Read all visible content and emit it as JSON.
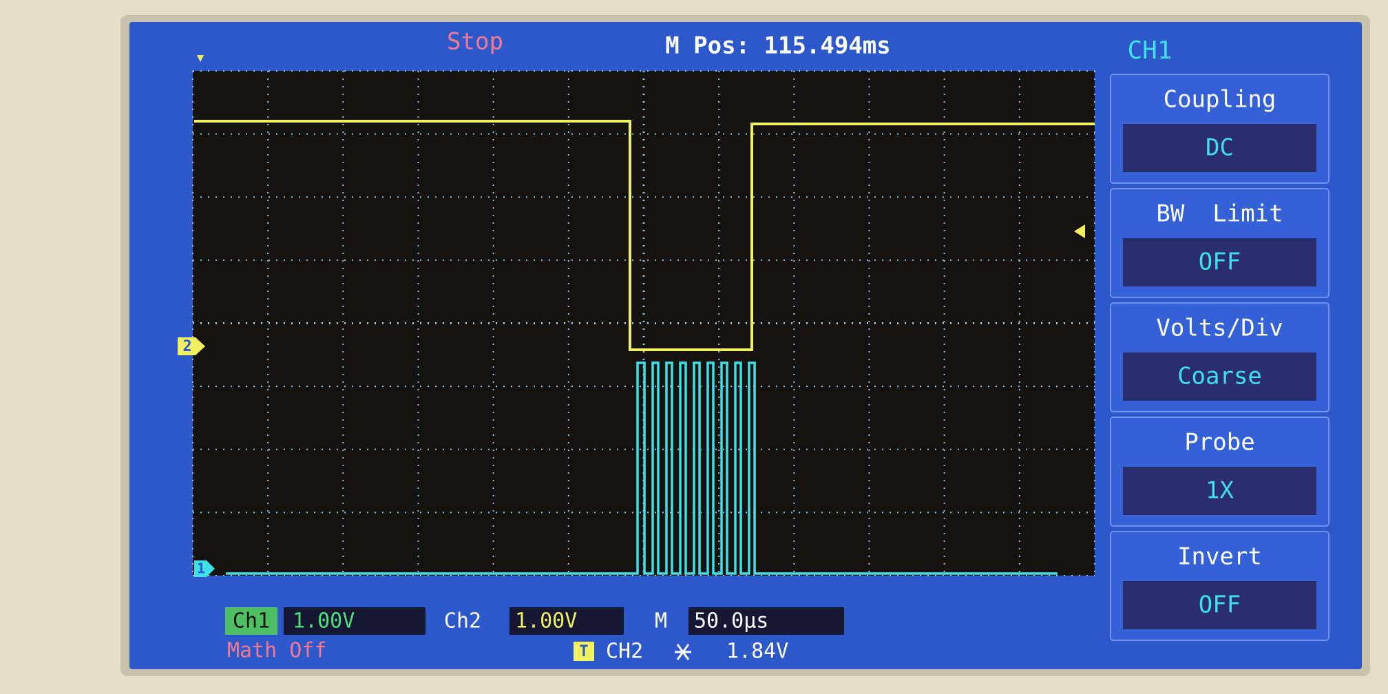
{
  "header": {
    "status": "Stop",
    "m_pos": "M Pos: 115.494ms"
  },
  "menu": {
    "title": "CH1",
    "items": [
      {
        "label": "Coupling",
        "value": "DC"
      },
      {
        "label": "BW  Limit",
        "value": "OFF"
      },
      {
        "label": "Volts/Div",
        "value": "Coarse"
      },
      {
        "label": "Probe",
        "value": "1X"
      },
      {
        "label": "Invert",
        "value": "OFF"
      }
    ]
  },
  "markers": {
    "ch2": "2",
    "ch1": "1"
  },
  "footer": {
    "ch1_label": "Ch1",
    "ch1_scale": "1.00V",
    "ch2_label": "Ch2",
    "ch2_scale": "1.00V",
    "time_label": "M",
    "time_scale": "50.0µs",
    "math": "Math Off",
    "trigger_icon": "T",
    "trigger_source": "CH2",
    "trigger_level": "1.84V"
  }
}
